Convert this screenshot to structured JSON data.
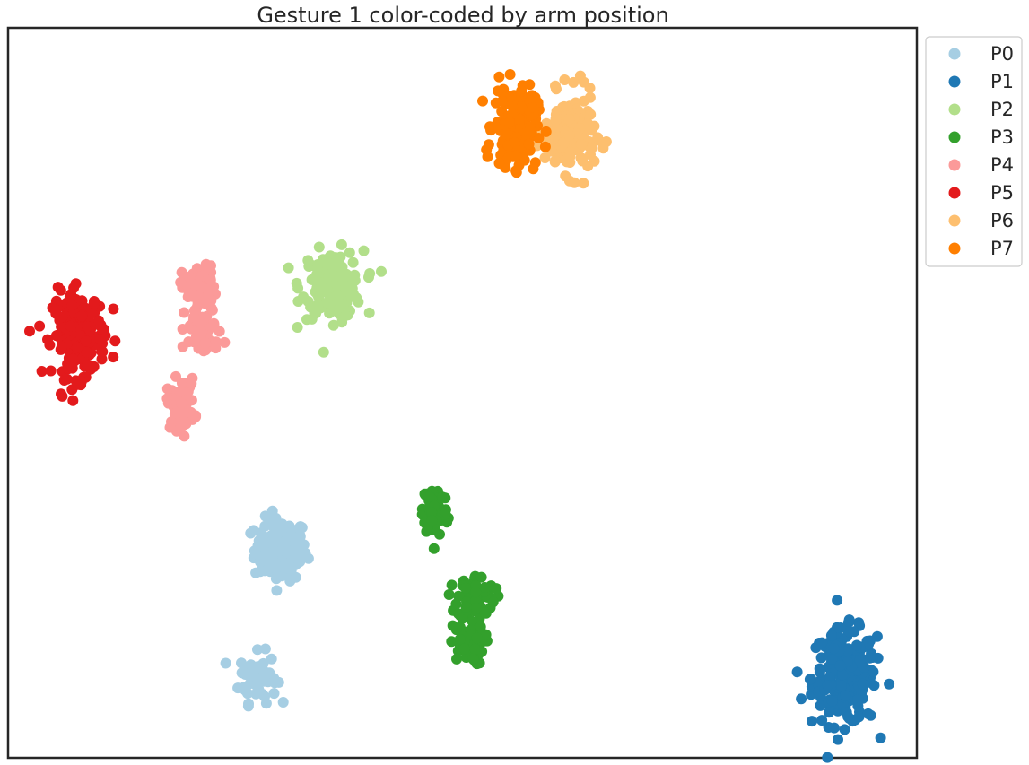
{
  "chart_data": {
    "type": "scatter",
    "title": "Gesture 1 color-coded by arm position",
    "xlabel": "",
    "ylabel": "",
    "xlim": [
      0,
      100
    ],
    "ylim": [
      0,
      100
    ],
    "axes_ticks": "none",
    "grid": false,
    "legend_position": "upper right, outside plot",
    "series": [
      {
        "name": "P0",
        "color": "#a6cee3",
        "clusters": [
          {
            "center": [
              30.0,
              28.5
            ],
            "spread": [
              1.7,
              2.5
            ],
            "n": 150
          },
          {
            "center": [
              27.5,
              11.0
            ],
            "spread": [
              1.2,
              2.0
            ],
            "n": 60
          }
        ]
      },
      {
        "name": "P1",
        "color": "#1f78b4",
        "clusters": [
          {
            "center": [
              92.0,
              11.0
            ],
            "spread": [
              2.1,
              3.8
            ],
            "n": 230
          }
        ]
      },
      {
        "name": "P2",
        "color": "#b2df8a",
        "clusters": [
          {
            "center": [
              35.7,
              64.8
            ],
            "spread": [
              2.0,
              2.7
            ],
            "n": 150
          }
        ]
      },
      {
        "name": "P3",
        "color": "#33a02c",
        "clusters": [
          {
            "center": [
              47.0,
              34.0
            ],
            "spread": [
              0.8,
              2.2
            ],
            "n": 70
          },
          {
            "center": [
              51.5,
              22.0
            ],
            "spread": [
              1.2,
              1.8
            ],
            "n": 70
          },
          {
            "center": [
              50.5,
              15.5
            ],
            "spread": [
              1.1,
              1.6
            ],
            "n": 70
          }
        ]
      },
      {
        "name": "P4",
        "color": "#fb9a99",
        "clusters": [
          {
            "center": [
              21.0,
              64.5
            ],
            "spread": [
              1.1,
              1.7
            ],
            "n": 60
          },
          {
            "center": [
              21.5,
              58.5
            ],
            "spread": [
              1.2,
              2.0
            ],
            "n": 60
          },
          {
            "center": [
              19.0,
              48.5
            ],
            "spread": [
              0.9,
              2.0
            ],
            "n": 55
          }
        ]
      },
      {
        "name": "P5",
        "color": "#e31a1c",
        "clusters": [
          {
            "center": [
              7.8,
              58.0
            ],
            "spread": [
              1.7,
              3.4
            ],
            "n": 200
          }
        ]
      },
      {
        "name": "P6",
        "color": "#fdbf6f",
        "clusters": [
          {
            "center": [
              61.8,
              85.5
            ],
            "spread": [
              1.6,
              3.2
            ],
            "n": 180
          }
        ]
      },
      {
        "name": "P7",
        "color": "#ff7f00",
        "clusters": [
          {
            "center": [
              55.8,
              86.5
            ],
            "spread": [
              1.4,
              3.2
            ],
            "n": 180
          }
        ]
      }
    ]
  }
}
